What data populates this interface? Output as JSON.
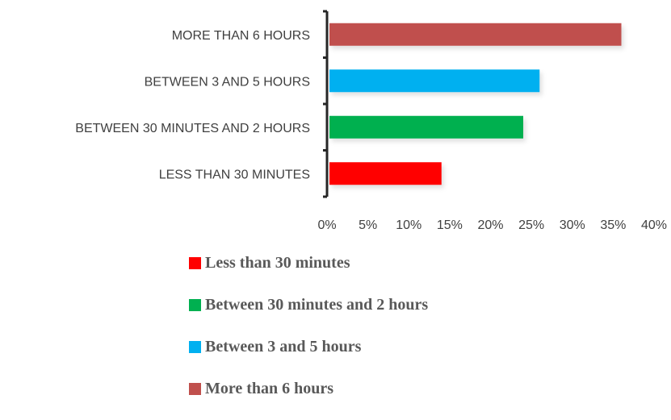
{
  "chart_data": {
    "type": "bar",
    "orientation": "horizontal",
    "categories": [
      "MORE THAN 6 HOURS",
      "BETWEEN 3 AND 5 HOURS",
      "BETWEEN 30 MINUTES AND 2 HOURS",
      "LESS THAN 30 MINUTES"
    ],
    "values": [
      36,
      26,
      24,
      14
    ],
    "colors": [
      "#c0504d",
      "#00b0f0",
      "#00b050",
      "#ff0000"
    ],
    "x_ticks": [
      "0%",
      "5%",
      "10%",
      "15%",
      "20%",
      "25%",
      "30%",
      "35%",
      "40%"
    ],
    "xlim": [
      0,
      40
    ],
    "grid": false,
    "legend_position": "bottom",
    "legend": [
      {
        "label": "Less than 30 minutes",
        "color": "#ff0000"
      },
      {
        "label": "Between 30 minutes and 2 hours",
        "color": "#00b050"
      },
      {
        "label": "Between 3 and 5 hours",
        "color": "#00b0f0"
      },
      {
        "label": "More than 6 hours",
        "color": "#c0504d"
      }
    ]
  }
}
